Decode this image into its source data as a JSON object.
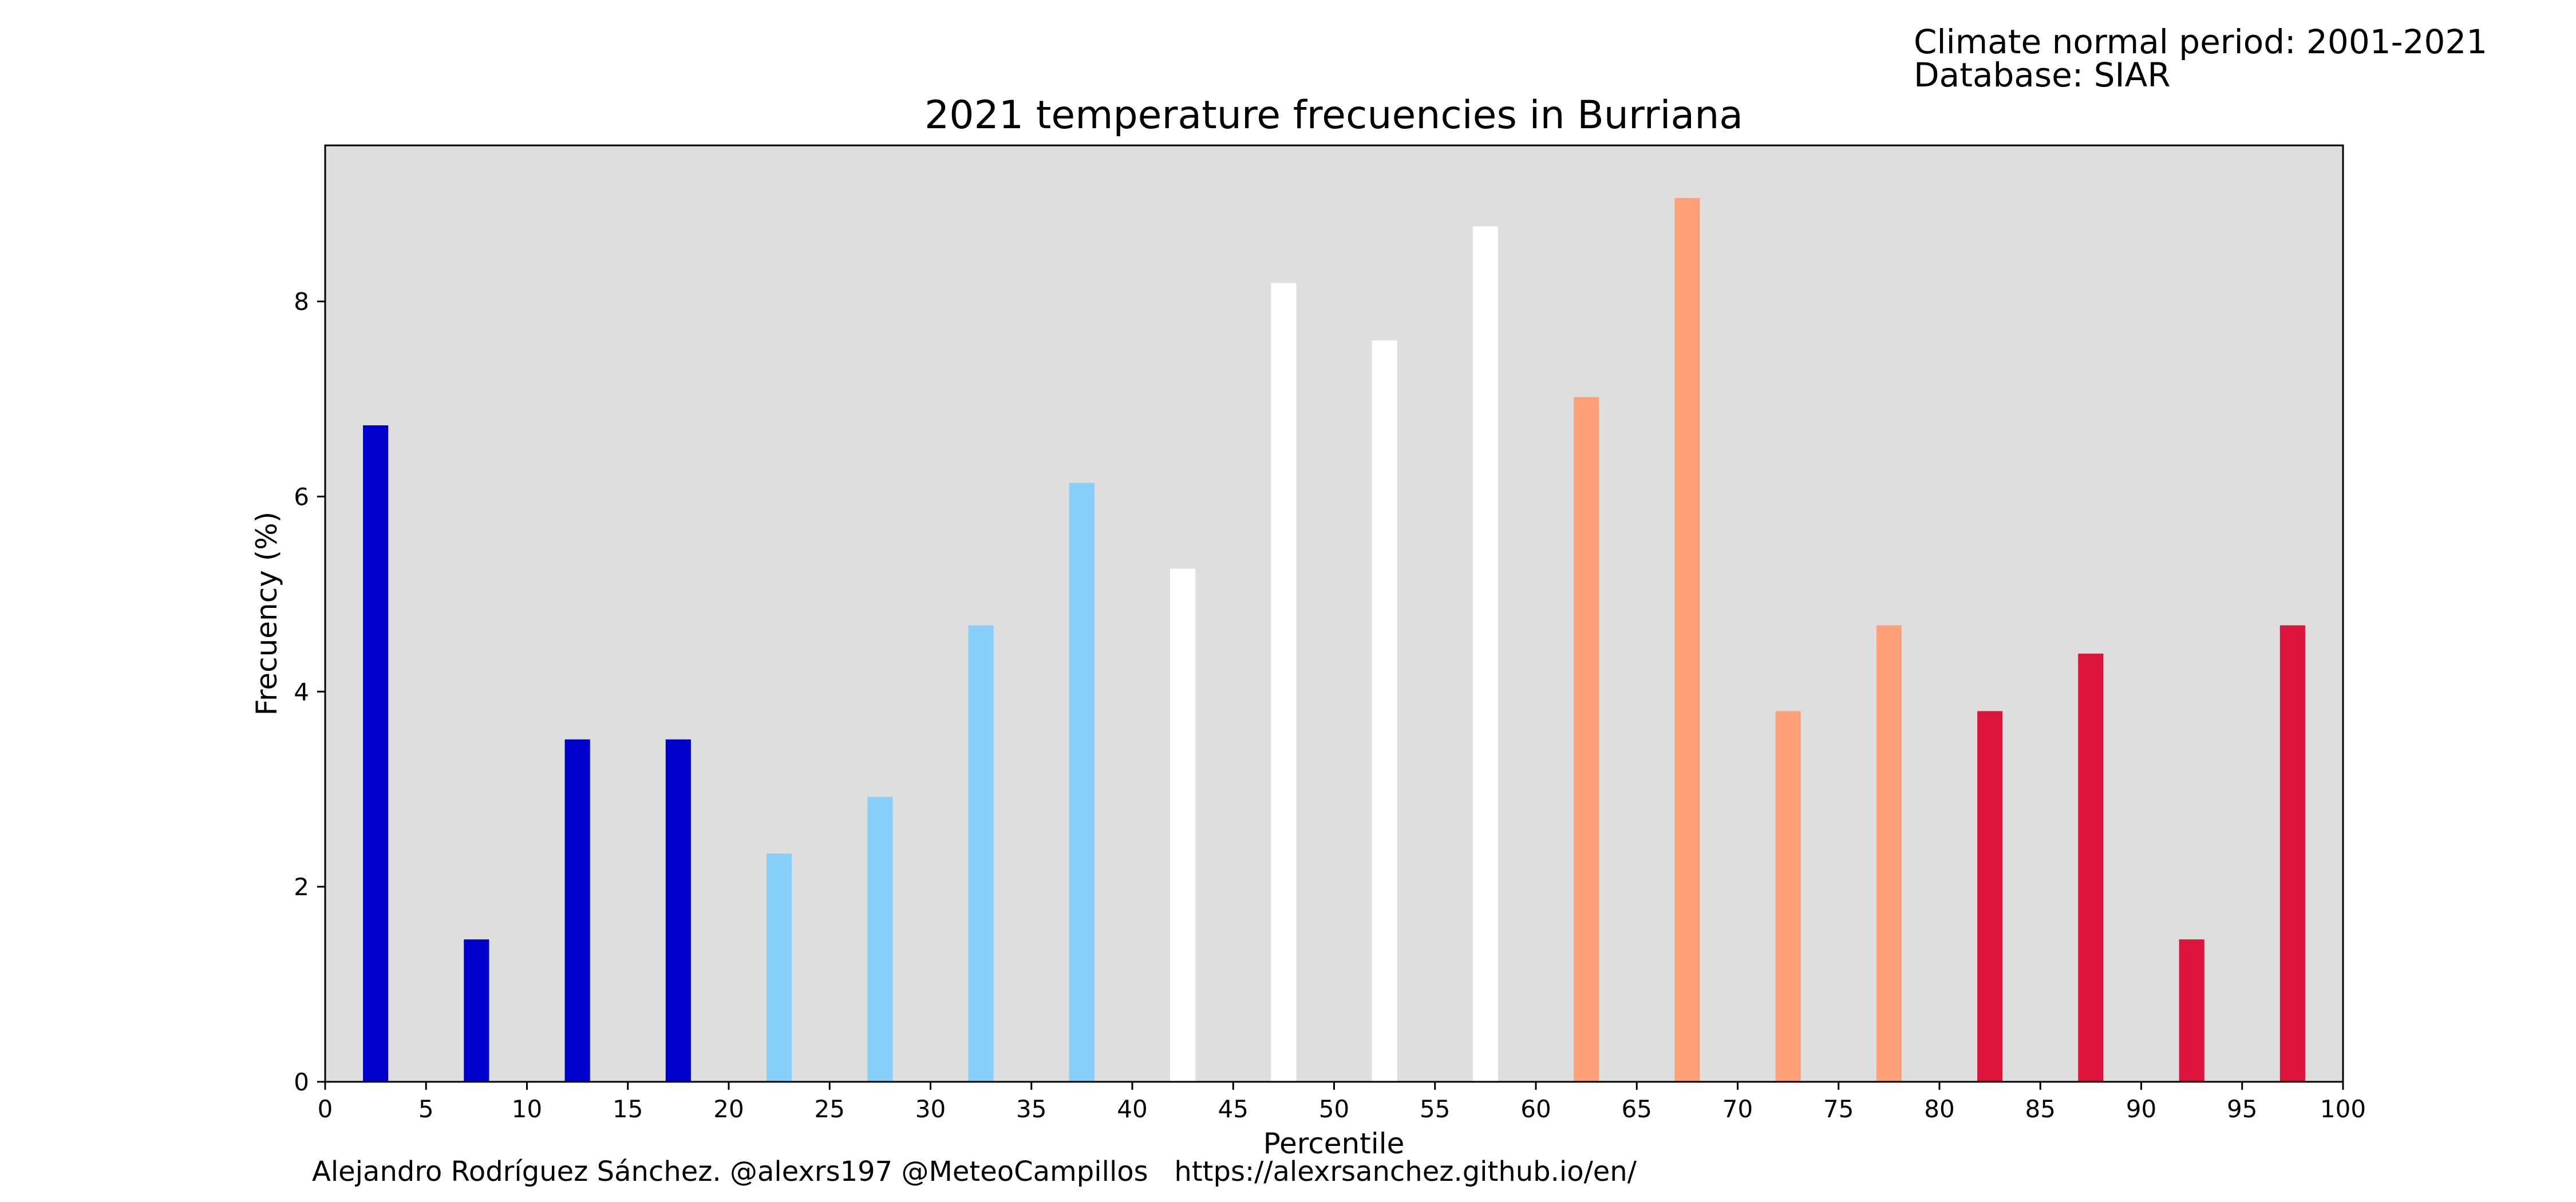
{
  "header": {
    "climate_normal_label": "Climate normal period: 2001-2021",
    "database_label": "Database: SIAR"
  },
  "footer": {
    "credit": "Alejandro Rodríguez Sánchez. @alexrs197 @MeteoCampillos   https://alexrsanchez.github.io/en/"
  },
  "colors": {
    "plot_background": "#dedede",
    "very_cold": "#0000cd",
    "cold": "#87cefa",
    "normal": "#ffffff",
    "warm": "#ffa07a",
    "very_warm": "#dc143c"
  },
  "chart_data": {
    "type": "bar",
    "title": "2021 temperature frecuencies in Burriana",
    "xlabel": "Percentile",
    "ylabel": "Frecuency (%)",
    "xlim": [
      0,
      100
    ],
    "ylim": [
      0,
      9.6
    ],
    "x_ticks": [
      "0",
      "5",
      "10",
      "15",
      "20",
      "25",
      "30",
      "35",
      "40",
      "45",
      "50",
      "55",
      "60",
      "65",
      "70",
      "75",
      "80",
      "85",
      "90",
      "95",
      "100"
    ],
    "y_ticks": [
      "0",
      "2",
      "4",
      "6",
      "8"
    ],
    "grid": false,
    "bar_width": 1.25,
    "x": [
      2.5,
      7.5,
      12.5,
      17.5,
      22.5,
      27.5,
      32.5,
      37.5,
      42.5,
      47.5,
      52.5,
      57.5,
      62.5,
      67.5,
      72.5,
      77.5,
      82.5,
      87.5,
      92.5,
      97.5
    ],
    "values": [
      6.73,
      1.46,
      3.51,
      3.51,
      2.34,
      2.92,
      4.68,
      6.14,
      5.26,
      8.19,
      7.6,
      8.77,
      7.02,
      9.06,
      3.8,
      4.68,
      3.8,
      4.39,
      1.46,
      4.68
    ],
    "bar_colors": [
      "#0000cd",
      "#0000cd",
      "#0000cd",
      "#0000cd",
      "#87cefa",
      "#87cefa",
      "#87cefa",
      "#87cefa",
      "#ffffff",
      "#ffffff",
      "#ffffff",
      "#ffffff",
      "#ffa07a",
      "#ffa07a",
      "#ffa07a",
      "#ffa07a",
      "#dc143c",
      "#dc143c",
      "#dc143c",
      "#dc143c"
    ]
  }
}
